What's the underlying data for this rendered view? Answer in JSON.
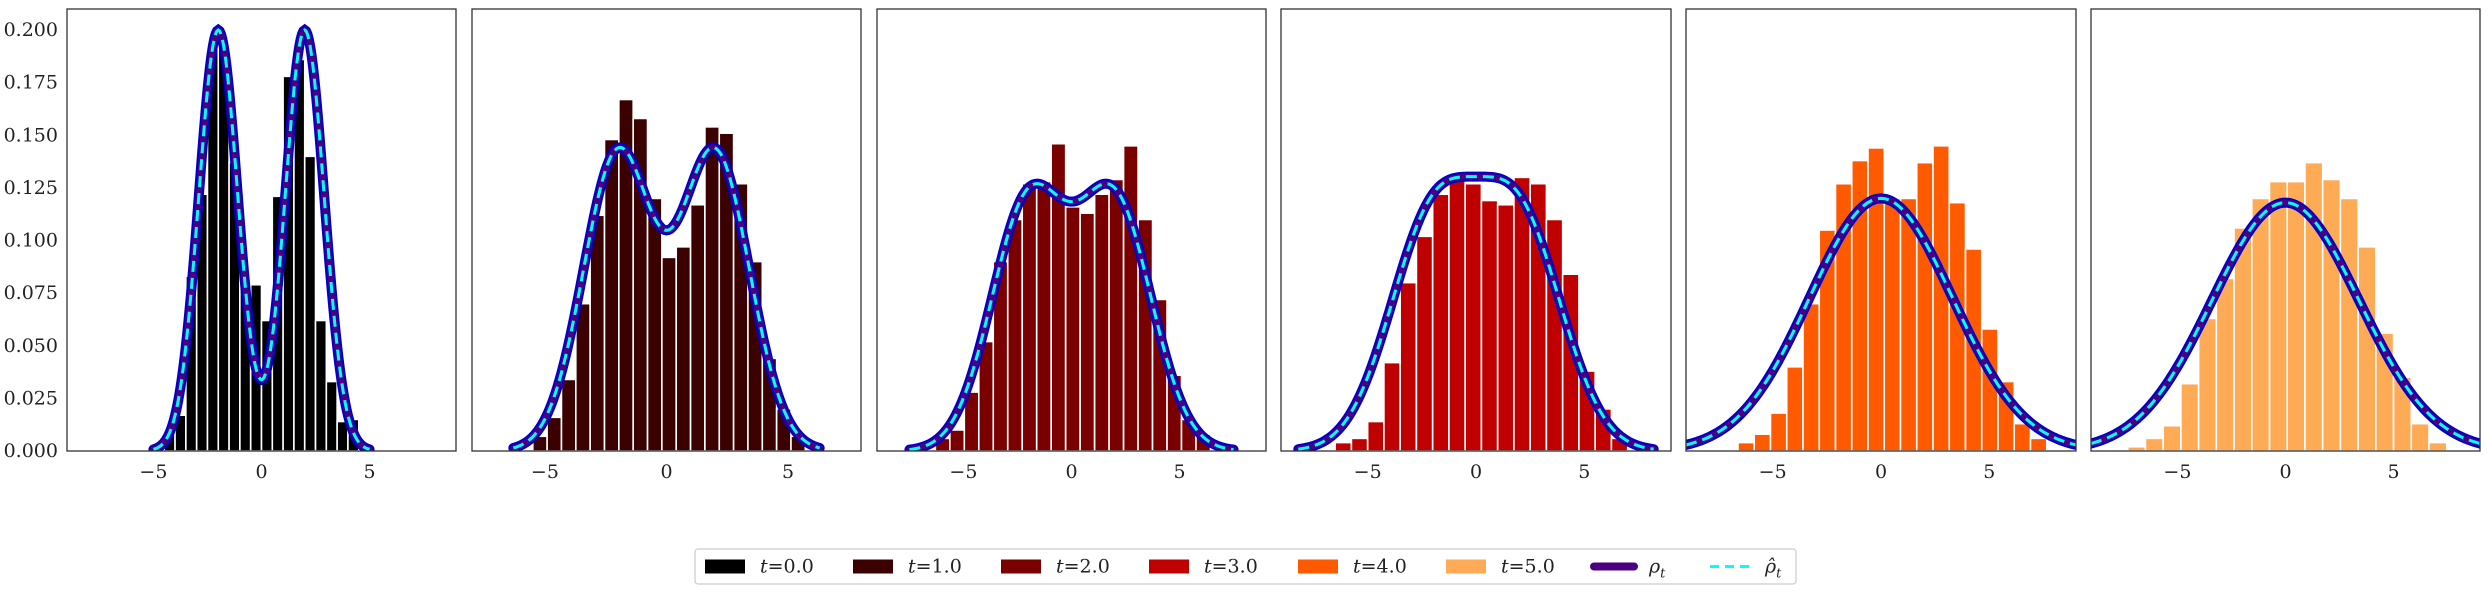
{
  "chart_data": {
    "type": "bar",
    "description_type": "histogram with density curves (small multiples)",
    "grid": false,
    "shared_y": true,
    "ylim": [
      0,
      0.21
    ],
    "yticks": [
      0.0,
      0.025,
      0.05,
      0.075,
      0.1,
      0.125,
      0.15,
      0.175,
      0.2
    ],
    "ytick_labels": [
      "0.000",
      "0.025",
      "0.050",
      "0.075",
      "0.100",
      "0.125",
      "0.150",
      "0.175",
      "0.200"
    ],
    "xticks": [
      -5,
      0,
      5
    ],
    "xtick_labels": [
      "−5",
      "0",
      "5"
    ],
    "legend": {
      "placement": "bottom-center",
      "entries": [
        {
          "label_t": "t",
          "label_rest": "=0.0",
          "kind": "patch",
          "color": "#000000"
        },
        {
          "label_t": "t",
          "label_rest": "=1.0",
          "kind": "patch",
          "color": "#3b0000"
        },
        {
          "label_t": "t",
          "label_rest": "=2.0",
          "kind": "patch",
          "color": "#7a0000"
        },
        {
          "label_t": "t",
          "label_rest": "=3.0",
          "kind": "patch",
          "color": "#c00000"
        },
        {
          "label_t": "t",
          "label_rest": "=4.0",
          "kind": "patch",
          "color": "#ff5a00"
        },
        {
          "label_t": "t",
          "label_rest": "=5.0",
          "kind": "patch",
          "color": "#ffaa55"
        },
        {
          "label_t": "ρ",
          "label_rest": "t",
          "kind": "line",
          "color": "#4b0082"
        },
        {
          "label_t": "ρ̂",
          "label_rest": "t",
          "kind": "dashed",
          "color": "#00ffff"
        }
      ]
    },
    "panels": [
      {
        "t": 0.0,
        "color": "#000000",
        "xlim": [
          -9,
          9
        ],
        "bins": {
          "start": -4.5,
          "width": 0.5,
          "heights": [
            0.01,
            0.017,
            0.083,
            0.122,
            0.192,
            0.192,
            0.137,
            0.08,
            0.079,
            0.062,
            0.121,
            0.178,
            0.186,
            0.14,
            0.062,
            0.033,
            0.014,
            0.015
          ]
        },
        "curve": {
          "mixture": true,
          "mu": 2.0,
          "sigma": 0.9,
          "amp": 0.2,
          "range": [
            -5,
            5
          ]
        }
      },
      {
        "t": 1.0,
        "color": "#3b0000",
        "xlim": [
          -8,
          8
        ],
        "bins": {
          "start": -5.5,
          "width": 0.59,
          "heights": [
            0.007,
            0.016,
            0.034,
            0.07,
            0.112,
            0.148,
            0.167,
            0.158,
            0.12,
            0.092,
            0.097,
            0.117,
            0.154,
            0.151,
            0.127,
            0.09,
            0.044,
            0.02,
            0.007
          ]
        },
        "curve": {
          "mixture": true,
          "mu": 2.0,
          "sigma": 1.42,
          "amp": 0.144,
          "range": [
            -6.3,
            6.3
          ]
        }
      },
      {
        "t": 2.0,
        "color": "#7a0000",
        "xlim": [
          -9,
          9
        ],
        "bins": {
          "start": -6.3,
          "width": 0.67,
          "heights": [
            0.006,
            0.01,
            0.028,
            0.052,
            0.09,
            0.11,
            0.127,
            0.128,
            0.146,
            0.116,
            0.113,
            0.122,
            0.129,
            0.145,
            0.11,
            0.072,
            0.036,
            0.015,
            0.008
          ]
        },
        "curve": {
          "mixture": true,
          "mu": 2.0,
          "sigma": 1.71,
          "amp": 0.125,
          "range": [
            -7.5,
            7.5
          ]
        }
      },
      {
        "t": 3.0,
        "color": "#c00000",
        "xlim": [
          -9,
          9
        ],
        "bins": {
          "start": -6.5,
          "width": 0.75,
          "heights": [
            0.004,
            0.006,
            0.014,
            0.042,
            0.08,
            0.102,
            0.122,
            0.13,
            0.127,
            0.119,
            0.117,
            0.13,
            0.127,
            0.11,
            0.084,
            0.038,
            0.02,
            0.006
          ]
        },
        "curve": {
          "mixture": true,
          "mu": 2.0,
          "sigma": 2.0,
          "amp": 0.122,
          "range": [
            -8.2,
            8.2
          ]
        }
      },
      {
        "t": 4.0,
        "color": "#ff5a00",
        "xlim": [
          -9,
          9
        ],
        "bins": {
          "start": -6.6,
          "width": 0.75,
          "heights": [
            0.004,
            0.008,
            0.018,
            0.04,
            0.07,
            0.105,
            0.127,
            0.138,
            0.144,
            0.12,
            0.12,
            0.137,
            0.145,
            0.118,
            0.096,
            0.058,
            0.033,
            0.013,
            0.006
          ]
        },
        "curve": {
          "mixture": false,
          "mu": 0,
          "sigma": 3.3,
          "amp": 0.12,
          "range": [
            -9,
            9
          ]
        }
      },
      {
        "t": 5.0,
        "color": "#ffaa55",
        "xlim": [
          -9,
          9
        ],
        "bins": {
          "start": -7.3,
          "width": 0.82,
          "heights": [
            0.002,
            0.006,
            0.012,
            0.032,
            0.063,
            0.082,
            0.106,
            0.12,
            0.128,
            0.128,
            0.137,
            0.129,
            0.12,
            0.097,
            0.056,
            0.035,
            0.013,
            0.004
          ]
        },
        "curve": {
          "mixture": false,
          "mu": 0,
          "sigma": 3.4,
          "amp": 0.118,
          "range": [
            -9,
            9
          ]
        }
      }
    ]
  }
}
